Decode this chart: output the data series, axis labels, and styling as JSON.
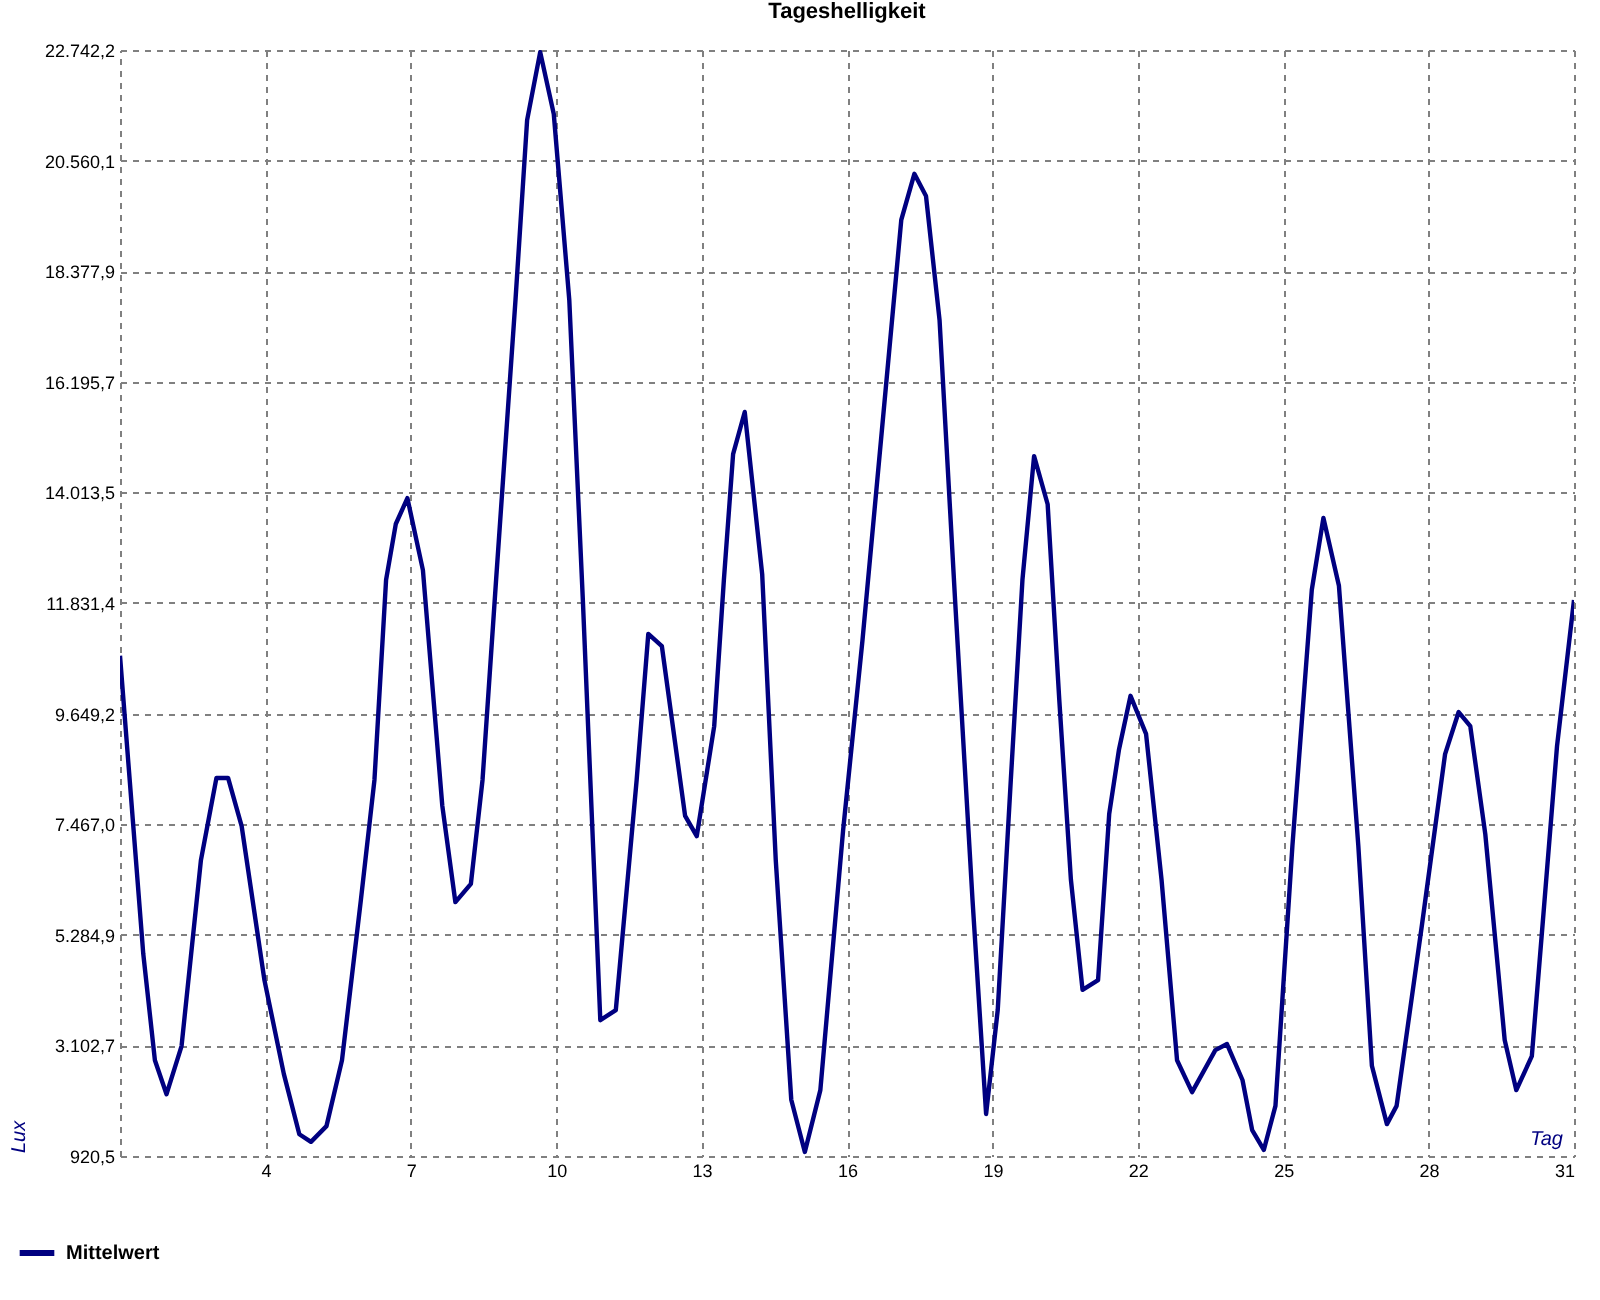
{
  "chart_data": {
    "type": "line",
    "title": "Tageshelligkeit",
    "xlabel": "Tag",
    "ylabel": "Lux",
    "x": [
      1,
      1.48,
      1.72,
      1.96,
      2.27,
      2.67,
      2.99,
      3.23,
      3.51,
      3.98,
      4.38,
      4.7,
      4.94,
      5.26,
      5.58,
      5.97,
      6.25,
      6.49,
      6.69,
      6.93,
      7.25,
      7.65,
      7.92,
      8.24,
      8.48,
      8.76,
      9.16,
      9.4,
      9.67,
      9.95,
      10.27,
      10.55,
      10.91,
      11.23,
      11.66,
      11.9,
      12.18,
      12.66,
      12.9,
      13.26,
      13.46,
      13.65,
      13.89,
      14.25,
      14.53,
      14.85,
      15.13,
      15.45,
      15.92,
      16.32,
      16.72,
      17.12,
      17.39,
      17.63,
      17.91,
      18.23,
      18.59,
      18.87,
      19.11,
      19.38,
      19.62,
      19.86,
      20.14,
      20.38,
      20.62,
      20.86,
      21.18,
      21.41,
      21.61,
      21.85,
      22.17,
      22.49,
      22.81,
      23.12,
      23.6,
      23.84,
      24.16,
      24.36,
      24.6,
      24.84,
      25.19,
      25.59,
      25.83,
      26.15,
      26.55,
      26.83,
      27.14,
      27.34,
      27.86,
      28.34,
      28.62,
      28.86,
      29.17,
      29.57,
      29.81,
      30.13,
      30.37,
      30.65,
      31
    ],
    "series": [
      {
        "name": "Mittelwert",
        "color": "#000080",
        "values": [
          10790,
          4910,
          2810,
          2140,
          3090,
          6760,
          8380,
          8380,
          7430,
          4390,
          2540,
          1350,
          1200,
          1510,
          2810,
          5970,
          8340,
          12290,
          13390,
          13900,
          12480,
          7830,
          5930,
          6290,
          8340,
          12290,
          17810,
          21360,
          22700,
          21480,
          17810,
          11890,
          3600,
          3800,
          8340,
          11220,
          10980,
          7630,
          7230,
          9400,
          12290,
          14770,
          15600,
          12400,
          6760,
          2030,
          1000,
          2220,
          7350,
          11100,
          15240,
          19390,
          20300,
          19860,
          17410,
          11890,
          5970,
          1750,
          3800,
          8340,
          12290,
          14730,
          13780,
          9920,
          6370,
          4200,
          4390,
          7670,
          8930,
          10000,
          9250,
          6370,
          2810,
          2180,
          3010,
          3130,
          2420,
          1430,
          1040,
          1910,
          7040,
          12090,
          13510,
          12170,
          7040,
          2700,
          1550,
          1910,
          5460,
          8850,
          9680,
          9400,
          7270,
          3210,
          2220,
          2890,
          5700,
          9010,
          11890
        ]
      }
    ],
    "xlim": [
      1,
      31
    ],
    "xticks": [
      4,
      7,
      10,
      13,
      16,
      19,
      22,
      25,
      28,
      31
    ],
    "ylim": [
      920.5,
      22742.2
    ],
    "yticks": [
      {
        "value": 920.5,
        "label": "920,5"
      },
      {
        "value": 3102.7,
        "label": "3.102,7"
      },
      {
        "value": 5284.9,
        "label": "5.284,9"
      },
      {
        "value": 7467.0,
        "label": "7.467,0"
      },
      {
        "value": 9649.2,
        "label": "9.649,2"
      },
      {
        "value": 11831.4,
        "label": "11.831,4"
      },
      {
        "value": 14013.5,
        "label": "14.013,5"
      },
      {
        "value": 16195.7,
        "label": "16.195,7"
      },
      {
        "value": 18377.9,
        "label": "18.377,9"
      },
      {
        "value": 20560.1,
        "label": "20.560,1"
      },
      {
        "value": 22742.2,
        "label": "22.742,2"
      }
    ],
    "grid": true,
    "legend": "bottom left",
    "line_style": "solid"
  }
}
